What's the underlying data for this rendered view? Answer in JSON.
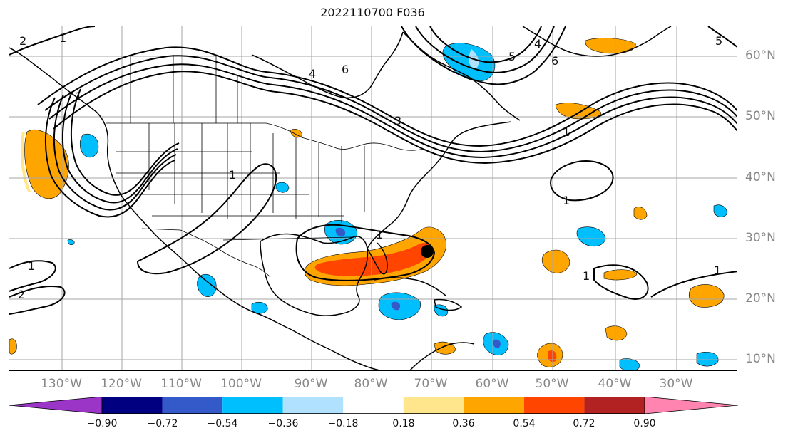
{
  "title": "2022110700 F036",
  "longitude_labels": [
    "130°W",
    "120°W",
    "110°W",
    "100°W",
    "90°W",
    "80°W",
    "70°W",
    "60°W",
    "50°W",
    "40°W",
    "30°W"
  ],
  "latitude_labels": [
    "60°N",
    "50°N",
    "40°N",
    "30°N",
    "20°N",
    "10°N"
  ],
  "colorbar": {
    "tick_labels": [
      "−0.90",
      "−0.72",
      "−0.54",
      "−0.36",
      "−0.18",
      "0.18",
      "0.36",
      "0.54",
      "0.72",
      "0.90"
    ],
    "colors": [
      "#9a35c8",
      "#000080",
      "#3459c9",
      "#00bfff",
      "#b0e2ff",
      "#ffffff",
      "#ffe68c",
      "#ffa500",
      "#ff4500",
      "#b22222",
      "#ff85b0"
    ]
  },
  "contour_labels": [
    "1",
    "2",
    "3",
    "4",
    "5",
    "6"
  ],
  "storm_marker": {
    "lon": "70.8°W",
    "lat": "27.8°N"
  },
  "colors": {
    "contour": "#000000",
    "grid": "#a6a6a6",
    "coast": "#000000",
    "axis_label": "#888888"
  }
}
